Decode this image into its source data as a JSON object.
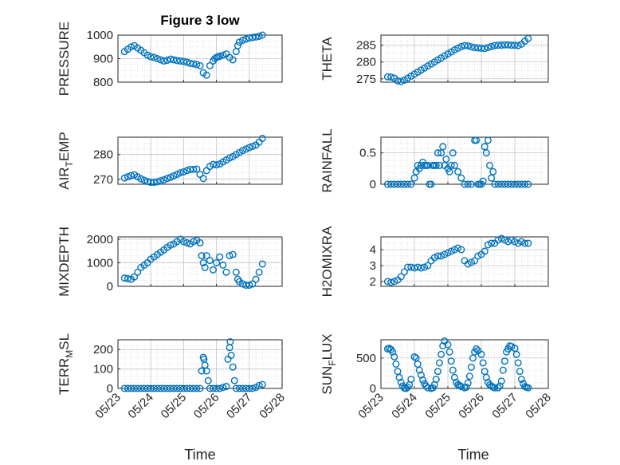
{
  "figure": {
    "title": "Figure 3 low",
    "xlabel": "Time"
  },
  "colors": {
    "marker": "#0072BD",
    "axis": "#262626",
    "grid": "#b0b0b0"
  },
  "chart_data": [
    {
      "type": "scatter",
      "name": "PRESSURE",
      "ylabel": "PRESSURE",
      "ylabel_sub": "",
      "ylim": [
        800,
        1000
      ],
      "yticks": [
        800,
        900,
        1000
      ],
      "xlim": [
        0,
        5
      ],
      "xticks": [
        "05/23",
        "05/24",
        "05/25",
        "05/26",
        "05/27",
        "05/28"
      ],
      "grid": true,
      "minor_grid": true,
      "x": [
        0.2,
        0.3,
        0.4,
        0.5,
        0.6,
        0.7,
        0.8,
        0.9,
        1.0,
        1.1,
        1.2,
        1.3,
        1.4,
        1.5,
        1.6,
        1.7,
        1.8,
        1.9,
        2.0,
        2.1,
        2.2,
        2.3,
        2.4,
        2.5,
        2.6,
        2.7,
        2.8,
        2.9,
        2.95,
        3.0,
        3.05,
        3.1,
        3.2,
        3.3,
        3.4,
        3.5,
        3.6,
        3.65,
        3.7,
        3.8,
        3.9,
        4.0,
        4.1,
        4.2,
        4.3,
        4.4
      ],
      "y": [
        930,
        940,
        950,
        955,
        945,
        935,
        925,
        915,
        908,
        905,
        900,
        895,
        890,
        893,
        898,
        895,
        892,
        890,
        888,
        885,
        880,
        878,
        875,
        870,
        840,
        830,
        870,
        890,
        900,
        905,
        908,
        910,
        915,
        920,
        905,
        895,
        930,
        955,
        970,
        978,
        983,
        988,
        990,
        992,
        995,
        1000
      ]
    },
    {
      "type": "scatter",
      "name": "THETA",
      "ylabel": "THETA",
      "ylabel_sub": "",
      "ylim": [
        274,
        288
      ],
      "yticks": [
        275,
        280,
        285
      ],
      "xlim": [
        0,
        5
      ],
      "xticks": [
        "05/23",
        "05/24",
        "05/25",
        "05/26",
        "05/27",
        "05/28"
      ],
      "grid": true,
      "minor_grid": true,
      "x": [
        0.2,
        0.3,
        0.4,
        0.5,
        0.6,
        0.7,
        0.8,
        0.9,
        1.0,
        1.1,
        1.2,
        1.3,
        1.4,
        1.5,
        1.6,
        1.7,
        1.8,
        1.9,
        2.0,
        2.1,
        2.2,
        2.3,
        2.4,
        2.5,
        2.6,
        2.7,
        2.8,
        2.9,
        3.0,
        3.1,
        3.2,
        3.3,
        3.4,
        3.5,
        3.6,
        3.7,
        3.8,
        3.9,
        4.0,
        4.1,
        4.2,
        4.3,
        4.4
      ],
      "y": [
        275.6,
        275.5,
        275.2,
        274.4,
        274.2,
        274.6,
        275.2,
        275.8,
        276.4,
        277.0,
        277.6,
        278.2,
        278.8,
        279.4,
        280.0,
        280.6,
        281.2,
        281.8,
        282.4,
        283.0,
        283.6,
        284.1,
        284.6,
        284.9,
        284.8,
        284.5,
        284.3,
        284.2,
        284.1,
        284.0,
        284.3,
        284.6,
        284.9,
        285.0,
        285.0,
        285.1,
        285.1,
        285.0,
        285.0,
        284.9,
        285.3,
        286.2,
        287.0
      ]
    },
    {
      "type": "scatter",
      "name": "AIR_TEMP",
      "ylabel": "AIR",
      "ylabel_sub": "T",
      "ylabel_tail": "EMP",
      "ylim": [
        268,
        287
      ],
      "yticks": [
        270,
        280
      ],
      "xlim": [
        0,
        5
      ],
      "xticks": [
        "05/23",
        "05/24",
        "05/25",
        "05/26",
        "05/27",
        "05/28"
      ],
      "grid": true,
      "minor_grid": true,
      "x": [
        0.2,
        0.3,
        0.4,
        0.5,
        0.6,
        0.7,
        0.8,
        0.9,
        1.0,
        1.1,
        1.2,
        1.3,
        1.4,
        1.5,
        1.6,
        1.7,
        1.8,
        1.9,
        2.0,
        2.1,
        2.2,
        2.3,
        2.4,
        2.5,
        2.6,
        2.7,
        2.8,
        2.9,
        3.0,
        3.1,
        3.2,
        3.3,
        3.4,
        3.5,
        3.6,
        3.7,
        3.8,
        3.9,
        4.0,
        4.1,
        4.2,
        4.3,
        4.4
      ],
      "y": [
        270.5,
        271.0,
        271.5,
        271.8,
        271.0,
        270.2,
        269.6,
        269.1,
        268.8,
        268.8,
        269.0,
        269.4,
        269.8,
        270.3,
        270.8,
        271.4,
        272.0,
        272.6,
        273.0,
        273.5,
        274.0,
        274.0,
        274.1,
        272.0,
        270.3,
        273.5,
        275.2,
        276.0,
        275.8,
        276.2,
        277.0,
        277.8,
        278.6,
        279.2,
        280.0,
        280.8,
        281.6,
        282.2,
        282.8,
        283.3,
        283.8,
        285.0,
        286.5
      ]
    },
    {
      "type": "scatter",
      "name": "RAINFALL",
      "ylabel": "RAINFALL",
      "ylabel_sub": "",
      "ylim": [
        0,
        0.75
      ],
      "yticks": [
        0,
        0.5
      ],
      "xlim": [
        0,
        5
      ],
      "xticks": [
        "05/23",
        "05/24",
        "05/25",
        "05/26",
        "05/27",
        "05/28"
      ],
      "grid": true,
      "minor_grid": true,
      "x": [
        0.2,
        0.3,
        0.4,
        0.5,
        0.6,
        0.7,
        0.8,
        0.9,
        1.0,
        1.05,
        1.1,
        1.15,
        1.2,
        1.25,
        1.3,
        1.35,
        1.4,
        1.45,
        1.5,
        1.55,
        1.6,
        1.65,
        1.7,
        1.75,
        1.8,
        1.85,
        1.9,
        1.95,
        2.0,
        2.05,
        2.1,
        2.15,
        2.2,
        2.3,
        2.4,
        2.5,
        2.6,
        2.7,
        2.8,
        2.85,
        2.9,
        2.95,
        3.0,
        3.05,
        3.1,
        3.15,
        3.2,
        3.25,
        3.3,
        3.35,
        3.4,
        3.5,
        3.6,
        3.7,
        3.8,
        3.9,
        4.0,
        4.1,
        4.2,
        4.3,
        4.4
      ],
      "y": [
        0,
        0,
        0,
        0,
        0,
        0,
        0,
        0,
        0.1,
        0.2,
        0.3,
        0.25,
        0.3,
        0.35,
        0.3,
        0.3,
        0.3,
        0,
        0,
        0.3,
        0.3,
        0.3,
        0.5,
        0.3,
        0.5,
        0.6,
        0.3,
        0.4,
        0.25,
        0.2,
        0.3,
        0.5,
        0.3,
        0.2,
        0.1,
        0,
        0,
        0,
        0.7,
        0.7,
        0,
        0,
        0,
        0.05,
        0.6,
        0.5,
        0.7,
        0.3,
        0.1,
        0.2,
        0,
        0,
        0,
        0,
        0,
        0,
        0,
        0,
        0,
        0,
        0
      ]
    },
    {
      "type": "scatter",
      "name": "MIXDEPTH",
      "ylabel": "MIXDEPTH",
      "ylabel_sub": "",
      "ylim": [
        0,
        2100
      ],
      "yticks": [
        0,
        1000,
        2000
      ],
      "xlim": [
        0,
        5
      ],
      "xticks": [
        "05/23",
        "05/24",
        "05/25",
        "05/26",
        "05/27",
        "05/28"
      ],
      "grid": true,
      "minor_grid": true,
      "x": [
        0.2,
        0.3,
        0.4,
        0.5,
        0.6,
        0.7,
        0.8,
        0.9,
        1.0,
        1.1,
        1.2,
        1.3,
        1.4,
        1.5,
        1.6,
        1.7,
        1.8,
        1.9,
        2.0,
        2.1,
        2.2,
        2.3,
        2.4,
        2.5,
        2.55,
        2.6,
        2.65,
        2.7,
        2.8,
        2.9,
        3.0,
        3.1,
        3.2,
        3.3,
        3.4,
        3.5,
        3.6,
        3.65,
        3.7,
        3.8,
        3.9,
        4.0,
        4.1,
        4.2,
        4.3,
        4.4
      ],
      "y": [
        350,
        330,
        300,
        400,
        600,
        800,
        900,
        1000,
        1150,
        1250,
        1350,
        1450,
        1550,
        1650,
        1750,
        1800,
        1900,
        2000,
        1900,
        1850,
        1800,
        1900,
        1950,
        1850,
        1300,
        1000,
        800,
        1300,
        1100,
        700,
        1000,
        1250,
        900,
        600,
        1300,
        1350,
        600,
        300,
        200,
        100,
        50,
        50,
        100,
        300,
        600,
        950
      ]
    },
    {
      "type": "scatter",
      "name": "H2OMIXRA",
      "ylabel": "H2OMIXRA",
      "ylabel_sub": "",
      "ylim": [
        1.7,
        4.8
      ],
      "yticks": [
        2,
        3,
        4
      ],
      "xlim": [
        0,
        5
      ],
      "xticks": [
        "05/23",
        "05/24",
        "05/25",
        "05/26",
        "05/27",
        "05/28"
      ],
      "grid": true,
      "minor_grid": true,
      "x": [
        0.2,
        0.3,
        0.4,
        0.5,
        0.6,
        0.7,
        0.8,
        0.9,
        1.0,
        1.1,
        1.2,
        1.3,
        1.4,
        1.5,
        1.6,
        1.7,
        1.8,
        1.9,
        2.0,
        2.1,
        2.2,
        2.3,
        2.4,
        2.5,
        2.6,
        2.7,
        2.8,
        2.9,
        3.0,
        3.1,
        3.2,
        3.3,
        3.4,
        3.5,
        3.6,
        3.7,
        3.8,
        3.9,
        4.0,
        4.1,
        4.2,
        4.3,
        4.4
      ],
      "y": [
        2.0,
        1.95,
        2.0,
        2.1,
        2.3,
        2.6,
        2.9,
        2.9,
        2.85,
        2.9,
        2.85,
        2.9,
        3.0,
        3.3,
        3.5,
        3.6,
        3.6,
        3.7,
        3.8,
        3.9,
        4.0,
        4.1,
        4.0,
        3.3,
        3.1,
        3.2,
        3.3,
        3.6,
        3.7,
        3.9,
        4.3,
        4.4,
        4.4,
        4.6,
        4.7,
        4.6,
        4.5,
        4.6,
        4.5,
        4.4,
        4.5,
        4.4,
        4.4
      ]
    },
    {
      "type": "scatter",
      "name": "TERR_MSL",
      "ylabel": "TERR",
      "ylabel_sub": "M",
      "ylabel_tail": "SL",
      "ylim": [
        0,
        250
      ],
      "yticks": [
        0,
        100,
        200
      ],
      "xlim": [
        0,
        5
      ],
      "xticks": [
        "05/23",
        "05/24",
        "05/25",
        "05/26",
        "05/27",
        "05/28"
      ],
      "grid": true,
      "minor_grid": true,
      "x": [
        0.2,
        0.3,
        0.4,
        0.5,
        0.6,
        0.7,
        0.8,
        0.9,
        1.0,
        1.1,
        1.2,
        1.3,
        1.4,
        1.5,
        1.6,
        1.7,
        1.8,
        1.9,
        2.0,
        2.1,
        2.2,
        2.3,
        2.4,
        2.5,
        2.55,
        2.6,
        2.62,
        2.65,
        2.7,
        2.75,
        2.8,
        2.9,
        3.0,
        3.1,
        3.2,
        3.3,
        3.35,
        3.4,
        3.42,
        3.45,
        3.5,
        3.55,
        3.6,
        3.7,
        3.8,
        3.9,
        4.0,
        4.1,
        4.2,
        4.3,
        4.4
      ],
      "y": [
        0,
        0,
        0,
        0,
        0,
        0,
        0,
        0,
        0,
        0,
        0,
        0,
        0,
        0,
        0,
        0,
        0,
        0,
        0,
        0,
        0,
        0,
        0,
        0,
        90,
        160,
        150,
        120,
        90,
        40,
        0,
        0,
        0,
        0,
        5,
        10,
        150,
        210,
        240,
        170,
        110,
        40,
        0,
        0,
        0,
        0,
        0,
        0,
        5,
        15,
        20
      ]
    },
    {
      "type": "scatter",
      "name": "SUN_FLUX",
      "ylabel": "SUN",
      "ylabel_sub": "F",
      "ylabel_tail": "LUX",
      "ylim": [
        0,
        800
      ],
      "yticks": [
        0,
        500
      ],
      "xlim": [
        0,
        5
      ],
      "xticks": [
        "05/23",
        "05/24",
        "05/25",
        "05/26",
        "05/27",
        "05/28"
      ],
      "grid": true,
      "minor_grid": true,
      "x": [
        0.2,
        0.25,
        0.3,
        0.35,
        0.4,
        0.45,
        0.5,
        0.55,
        0.6,
        0.65,
        0.7,
        0.75,
        0.8,
        0.85,
        0.9,
        1.0,
        1.05,
        1.1,
        1.15,
        1.2,
        1.25,
        1.3,
        1.35,
        1.4,
        1.5,
        1.55,
        1.6,
        1.65,
        1.7,
        1.75,
        1.8,
        1.85,
        1.9,
        2.0,
        2.05,
        2.1,
        2.15,
        2.2,
        2.25,
        2.3,
        2.35,
        2.4,
        2.5,
        2.55,
        2.6,
        2.65,
        2.7,
        2.75,
        2.8,
        2.85,
        2.9,
        3.0,
        3.05,
        3.1,
        3.15,
        3.2,
        3.25,
        3.3,
        3.35,
        3.4,
        3.5,
        3.55,
        3.6,
        3.65,
        3.7,
        3.75,
        3.8,
        3.85,
        3.9,
        4.0,
        4.05,
        4.1,
        4.15,
        4.2,
        4.25,
        4.3,
        4.35,
        4.4
      ],
      "y": [
        650,
        660,
        640,
        600,
        520,
        400,
        280,
        180,
        100,
        40,
        5,
        0,
        20,
        60,
        150,
        520,
        500,
        400,
        300,
        220,
        140,
        80,
        40,
        10,
        0,
        10,
        60,
        150,
        280,
        420,
        560,
        700,
        780,
        720,
        600,
        450,
        300,
        180,
        100,
        60,
        50,
        30,
        10,
        20,
        90,
        200,
        350,
        500,
        600,
        650,
        620,
        560,
        420,
        280,
        180,
        100,
        60,
        40,
        20,
        10,
        10,
        40,
        120,
        300,
        450,
        600,
        650,
        700,
        690,
        660,
        560,
        420,
        280,
        150,
        80,
        30,
        20,
        10
      ]
    }
  ]
}
